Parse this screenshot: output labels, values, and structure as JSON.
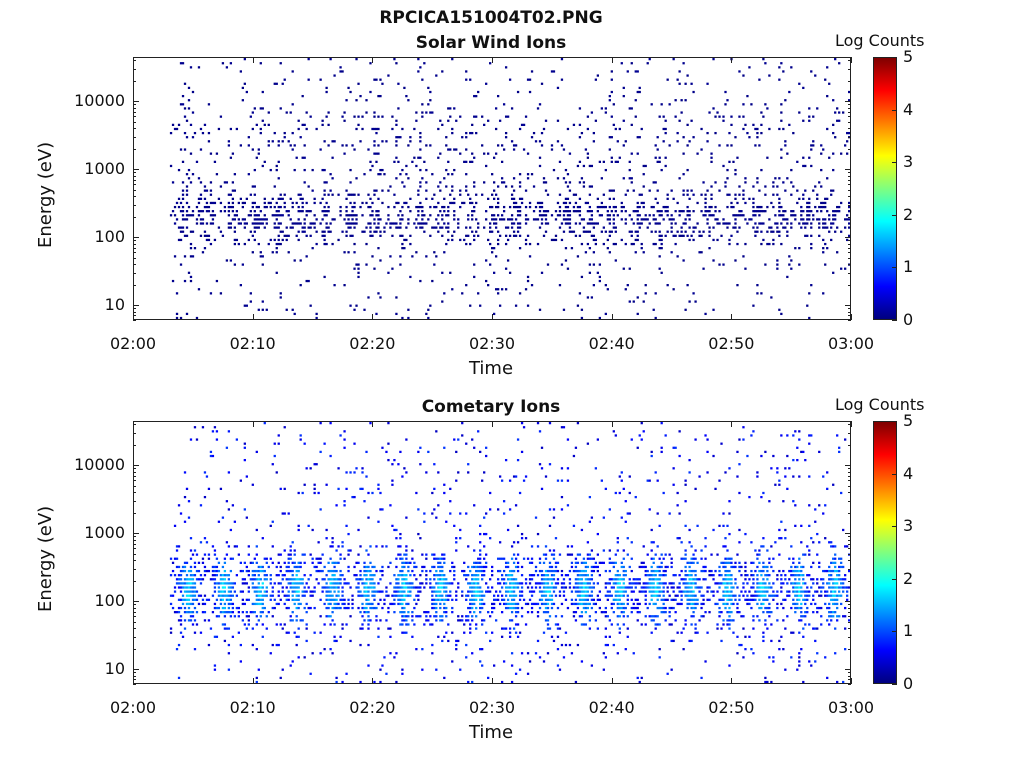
{
  "figure": {
    "filename_title": "RPCICA151004T02.PNG"
  },
  "chart_data": [
    {
      "type": "heatmap",
      "title": "Solar Wind Ions",
      "xlabel": "Time",
      "ylabel": "Energy (eV)",
      "x_ticks": [
        "02:00",
        "02:10",
        "02:20",
        "02:30",
        "02:40",
        "02:50",
        "03:00"
      ],
      "x_range": [
        "02:00",
        "03:00"
      ],
      "y_scale": "log",
      "y_ticks": [
        "10",
        "100",
        "1000",
        "10000"
      ],
      "y_range": [
        6,
        45000
      ],
      "colorbar": {
        "label": "Log Counts",
        "range": [
          0,
          5
        ],
        "ticks": [
          "0",
          "1",
          "2",
          "3",
          "4",
          "5"
        ]
      },
      "colormap": "jet",
      "data_start": "02:03",
      "data_end": "03:00",
      "sweep_period_min": 2,
      "typical_log_counts": 0.1,
      "max_log_counts": 0.3,
      "bands": [
        {
          "center_eV": 200,
          "spread_decades": 0.35,
          "density": 0.55,
          "intensity": 0.1
        },
        {
          "center_eV": 3000,
          "spread_decades": 0.5,
          "density": 0.1,
          "intensity": 0.05
        }
      ],
      "grid": false
    },
    {
      "type": "heatmap",
      "title": "Cometary Ions",
      "xlabel": "Time",
      "ylabel": "Energy (eV)",
      "x_ticks": [
        "02:00",
        "02:10",
        "02:20",
        "02:30",
        "02:40",
        "02:50",
        "03:00"
      ],
      "x_range": [
        "02:00",
        "03:00"
      ],
      "y_scale": "log",
      "y_ticks": [
        "10",
        "100",
        "1000",
        "10000"
      ],
      "y_range": [
        6,
        45000
      ],
      "colorbar": {
        "label": "Log Counts",
        "range": [
          0,
          5
        ],
        "ticks": [
          "0",
          "1",
          "2",
          "3",
          "4",
          "5"
        ]
      },
      "colormap": "jet",
      "data_start": "02:03",
      "data_end": "03:00",
      "sweep_period_min": 3,
      "typical_log_counts": 1.0,
      "max_log_counts": 2.2,
      "bands": [
        {
          "center_eV": 150,
          "spread_decades": 0.45,
          "density": 0.9,
          "intensity": 1.0
        }
      ],
      "grid": false
    }
  ]
}
